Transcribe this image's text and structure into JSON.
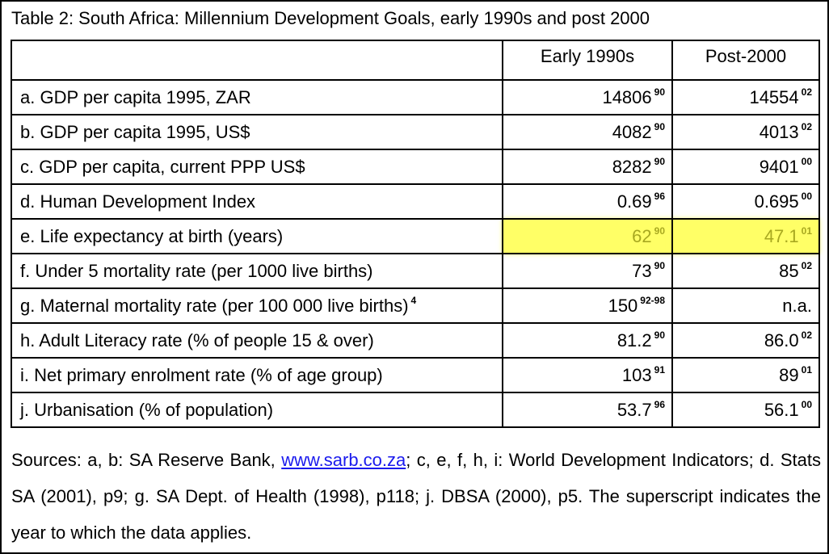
{
  "title": "Table 2: South Africa: Millennium Development Goals, early 1990s and post 2000",
  "table": {
    "header": [
      "Early 1990s",
      "Post-2000"
    ],
    "rows": [
      {
        "label": "a. GDP per capita 1995, ZAR",
        "early": {
          "value": "14806",
          "year": "90"
        },
        "post": {
          "value": "14554",
          "year": "02"
        }
      },
      {
        "label": "b. GDP per capita 1995, US$",
        "early": {
          "value": "4082",
          "year": "90"
        },
        "post": {
          "value": "4013",
          "year": "02"
        }
      },
      {
        "label": "c. GDP per capita, current PPP US$",
        "early": {
          "value": "8282",
          "year": "90"
        },
        "post": {
          "value": "9401",
          "year": "00"
        }
      },
      {
        "label": "d. Human Development Index",
        "early": {
          "value": "0.69",
          "year": "96"
        },
        "post": {
          "value": "0.695",
          "year": "00"
        }
      },
      {
        "label": "e. Life expectancy at birth (years)",
        "early": {
          "value": "62",
          "year": "90"
        },
        "post": {
          "value": "47.1",
          "year": "01"
        },
        "highlight": true
      },
      {
        "label": "f. Under 5 mortality rate (per 1000 live births)",
        "early": {
          "value": "73",
          "year": "90"
        },
        "post": {
          "value": "85",
          "year": "02"
        }
      },
      {
        "label": "g. Maternal mortality rate (per 100 000 live births)",
        "note": "4",
        "early": {
          "value": "150",
          "year": "92-98"
        },
        "post": {
          "value": "n.a."
        }
      },
      {
        "label": "h. Adult Literacy rate (% of people 15 & over)",
        "early": {
          "value": "81.2",
          "year": "90"
        },
        "post": {
          "value": "86.0",
          "year": "02"
        }
      },
      {
        "label": "i. Net primary enrolment rate (% of age group)",
        "early": {
          "value": "103",
          "year": "91"
        },
        "post": {
          "value": "89",
          "year": "01"
        }
      },
      {
        "label": "j. Urbanisation (% of population)",
        "early": {
          "value": "53.7",
          "year": "96"
        },
        "post": {
          "value": "56.1",
          "year": "00"
        }
      }
    ]
  },
  "sources": {
    "before": "Sources: a, b: SA Reserve Bank, ",
    "link": "www.sarb.co.za",
    "after": "; c, e, f, h, i: World Development Indicators; d. Stats SA (2001), p9; g. SA Dept. of Health (1998), p118; j. DBSA (2000), p5. The superscript indicates the year to which the data applies."
  }
}
